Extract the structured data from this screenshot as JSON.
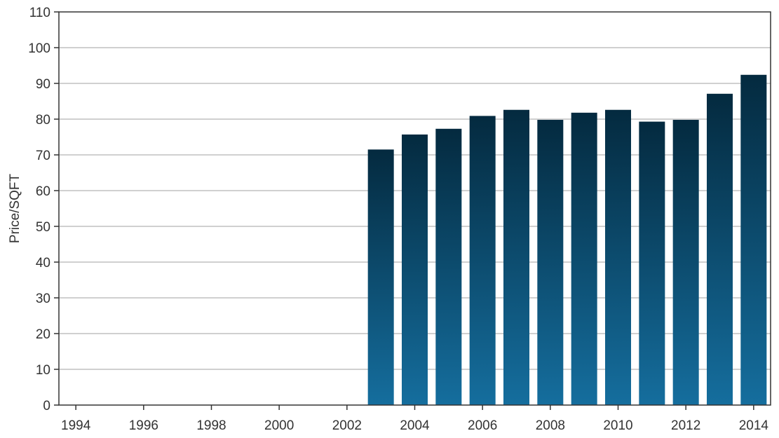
{
  "chart_data": {
    "type": "bar",
    "title": "",
    "xlabel": "",
    "ylabel": "Price/SQFT",
    "categories": [
      "1994",
      "1995",
      "1996",
      "1997",
      "1998",
      "1999",
      "2000",
      "2001",
      "2002",
      "2003",
      "2004",
      "2005",
      "2006",
      "2007",
      "2008",
      "2009",
      "2010",
      "2011",
      "2012",
      "2013",
      "2014"
    ],
    "values": [
      0,
      0,
      0,
      0,
      0,
      0,
      0,
      0,
      0,
      71.5,
      75.7,
      77.3,
      80.9,
      82.6,
      79.8,
      81.8,
      82.6,
      79.3,
      79.8,
      87.1,
      92.4
    ],
    "x_tick_labels": [
      "1994",
      "1996",
      "1998",
      "2000",
      "2002",
      "2004",
      "2006",
      "2008",
      "2010",
      "2012",
      "2014"
    ],
    "y_tick_labels": [
      "0",
      "10",
      "20",
      "30",
      "40",
      "50",
      "60",
      "70",
      "80",
      "90",
      "100",
      "110"
    ],
    "ylim": [
      0,
      110
    ],
    "xlim": [
      1993.5,
      2014.5
    ],
    "grid": true,
    "legend": "none",
    "colors": {
      "bar_top": "#042a3f",
      "bar_bottom": "#156e9e",
      "grid": "#c0c0c0",
      "axis": "#333333"
    }
  }
}
